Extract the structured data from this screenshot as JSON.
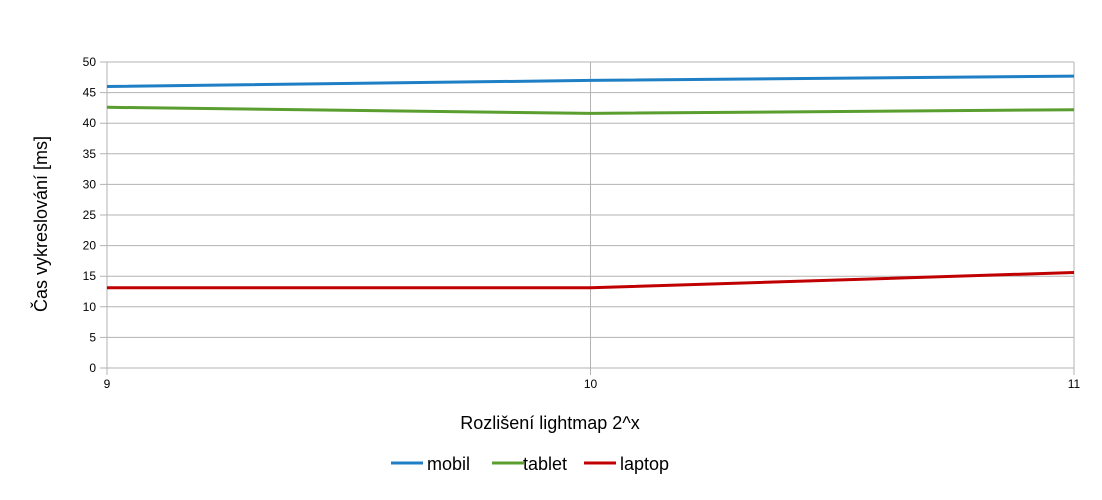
{
  "chart_data": {
    "type": "line",
    "title": "",
    "xlabel": "Rozlišení lightmap 2^x",
    "ylabel": "Čas vykreslování [ms]",
    "x": [
      9,
      10,
      11
    ],
    "x_tick_labels": [
      "9",
      "10",
      "11"
    ],
    "xlim": [
      9,
      11
    ],
    "ylim": [
      0,
      50
    ],
    "y_ticks": [
      0,
      5,
      10,
      15,
      20,
      25,
      30,
      35,
      40,
      45,
      50
    ],
    "grid": true,
    "legend_position": "bottom",
    "series": [
      {
        "name": "mobil",
        "color": "#1f7fc4",
        "values": [
          46.0,
          47.0,
          47.7
        ]
      },
      {
        "name": "tablet",
        "color": "#5a9e2f",
        "values": [
          42.6,
          41.6,
          42.2
        ]
      },
      {
        "name": "laptop",
        "color": "#c00000",
        "values": [
          13.1,
          13.1,
          15.6
        ]
      }
    ]
  }
}
